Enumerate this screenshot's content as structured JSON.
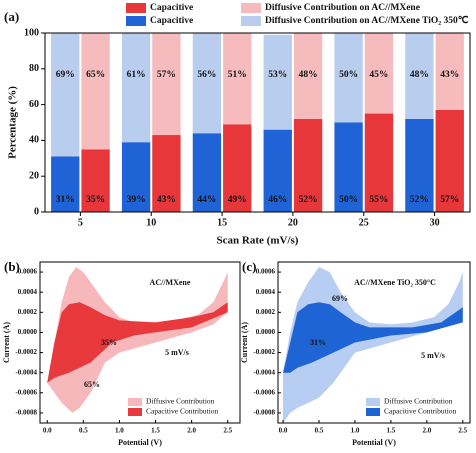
{
  "chart_data": [
    {
      "type": "bar",
      "panel_label": "(a)",
      "ylabel": "Percentage (%)",
      "xlabel": "Scan Rate (mV/s)",
      "categories": [
        5,
        10,
        15,
        20,
        25,
        30
      ],
      "series": [
        {
          "name": "Capacitive",
          "color": "#e8373a",
          "values": [
            35,
            43,
            49,
            52,
            55,
            57
          ],
          "value_labels": [
            "35%",
            "43%",
            "49%",
            "52%",
            "55%",
            "57%"
          ]
        },
        {
          "name": "Diffusive Contribution on AC//MXene",
          "color": "#f6bcbd",
          "values": [
            65,
            57,
            51,
            48,
            45,
            43
          ],
          "value_labels": [
            "65%",
            "57%",
            "51%",
            "48%",
            "45%",
            "43%"
          ]
        },
        {
          "name": "Capacitive",
          "color": "#1f63d6",
          "values": [
            31,
            39,
            44,
            46,
            50,
            52
          ],
          "value_labels": [
            "31%",
            "39%",
            "44%",
            "46%",
            "50%",
            "52%"
          ]
        },
        {
          "name": "Diffusive Contribution on AC//MXene TiO₂ 350℃",
          "color": "#b9cdee",
          "values": [
            69,
            61,
            56,
            53,
            50,
            48
          ],
          "value_labels": [
            "69%",
            "61%",
            "56%",
            "53%",
            "50%",
            "48%"
          ]
        }
      ],
      "ylim": [
        0,
        100
      ],
      "yticks": [
        0,
        20,
        40,
        60,
        80,
        100
      ]
    },
    {
      "type": "area",
      "panel_label": "(b)",
      "ylabel": "Current (A)",
      "xlabel": "Potential (V)",
      "annotations": [
        "AC//MXene",
        "35%",
        "65%",
        "5 mV/s"
      ],
      "series": [
        {
          "name": "Diffusive Contribution",
          "color": "#f7b8bb",
          "x": [
            0,
            0.1,
            0.2,
            0.3,
            0.4,
            0.5,
            0.65,
            0.8,
            1.0,
            1.2,
            1.5,
            1.8,
            2.1,
            2.3,
            2.45,
            2.5,
            2.5,
            2.3,
            2.0,
            1.5,
            1.0,
            0.8,
            0.6,
            0.45,
            0.35,
            0.2,
            0.1,
            0
          ],
          "values": [
            -0.0005,
            -0.0001,
            0.0003,
            0.00055,
            0.00065,
            0.0006,
            0.00045,
            0.0003,
            0.00015,
            0.0001,
            0.0001,
            0.00012,
            0.00018,
            0.0003,
            0.00052,
            0.0006,
            0.0002,
            8e-05,
            0,
            -0.0001,
            -0.0002,
            -0.0003,
            -0.0006,
            -0.00075,
            -0.0008,
            -0.0007,
            -0.0006,
            -0.0005
          ]
        },
        {
          "name": "Capacitive Contribution",
          "color": "#e8393d",
          "x": [
            0,
            0.1,
            0.2,
            0.3,
            0.45,
            0.6,
            0.8,
            1.0,
            1.5,
            2.0,
            2.3,
            2.5,
            2.5,
            2.0,
            1.5,
            1.2,
            0.9,
            0.6,
            0.3,
            0.1,
            0
          ],
          "values": [
            -0.0005,
            -0.0001,
            0.0002,
            0.00028,
            0.0003,
            0.00025,
            0.00017,
            0.00012,
            0.0001,
            0.00015,
            0.0002,
            0.0003,
            0.0002,
            5e-05,
            0,
            -3e-05,
            -0.0001,
            -0.0003,
            -0.0004,
            -0.00045,
            -0.0005
          ]
        }
      ],
      "xlim": [
        -0.1,
        2.67
      ],
      "xticks": [
        {
          "value": 0,
          "label": "0.0"
        },
        0.5,
        {
          "value": 1,
          "label": "1.0"
        },
        1.5,
        {
          "value": 2,
          "label": "2.0"
        },
        2.5
      ],
      "ylim": [
        -0.0009,
        0.0007
      ],
      "yticks": [
        0.0006,
        0.0004,
        0.0002,
        {
          "value": 0,
          "label": "0.0000"
        },
        -0.0002,
        -0.0004,
        -0.0006,
        -0.0008
      ]
    },
    {
      "type": "area",
      "panel_label": "(c)",
      "ylabel": "Current (A)",
      "xlabel": "Potential (V)",
      "annotations": [
        "AC//MXene TiO₂ 350°C",
        "69%",
        "31%",
        "5 mV/s"
      ],
      "series": [
        {
          "name": "Diffusive Contribution",
          "color": "#b7cef2",
          "x": [
            0,
            0.1,
            0.2,
            0.35,
            0.5,
            0.65,
            0.8,
            1.0,
            1.2,
            1.5,
            1.8,
            2.1,
            2.3,
            2.45,
            2.5,
            2.5,
            2.3,
            2.0,
            1.5,
            1.0,
            0.7,
            0.5,
            0.35,
            0.2,
            0.1,
            0
          ],
          "values": [
            -0.0004,
            0,
            0.0003,
            0.0005,
            0.00065,
            0.0006,
            0.0004,
            0.0002,
            0.0001,
            8e-05,
            0.0001,
            0.00015,
            0.00028,
            0.0005,
            0.0006,
            0.0002,
            8e-05,
            0,
            -0.0001,
            -0.0002,
            -0.0005,
            -0.00065,
            -0.0007,
            -0.00075,
            -0.0008,
            -0.0009
          ]
        },
        {
          "name": "Capacitive Contribution",
          "color": "#1f64d4",
          "x": [
            0,
            0.1,
            0.2,
            0.35,
            0.5,
            0.65,
            0.8,
            1.0,
            1.2,
            1.8,
            2.2,
            2.5,
            2.5,
            2.0,
            1.5,
            1.0,
            0.7,
            0.4,
            0.2,
            0.1,
            0
          ],
          "values": [
            -0.0004,
            -0.0001,
            0.0002,
            0.00028,
            0.0003,
            0.00028,
            0.0002,
            0.0001,
            5e-05,
            5e-05,
            0.0001,
            0.00025,
            0.0001,
            0,
            -3e-05,
            -0.0001,
            -0.0002,
            -0.0003,
            -0.00035,
            -0.0004,
            -0.0004
          ]
        }
      ],
      "xlim": [
        -0.07,
        2.6
      ],
      "xticks": [
        {
          "value": 0,
          "label": "0.0"
        },
        0.5,
        {
          "value": 1,
          "label": "1.0"
        },
        1.5,
        {
          "value": 2,
          "label": "2.0"
        },
        2.5
      ],
      "ylim": [
        -0.0009,
        0.0007
      ],
      "yticks": [
        0.0006,
        0.0004,
        0.0002,
        {
          "value": 0,
          "label": "0.0000"
        },
        -0.0002,
        -0.0004,
        -0.0006,
        -0.0008
      ]
    }
  ]
}
